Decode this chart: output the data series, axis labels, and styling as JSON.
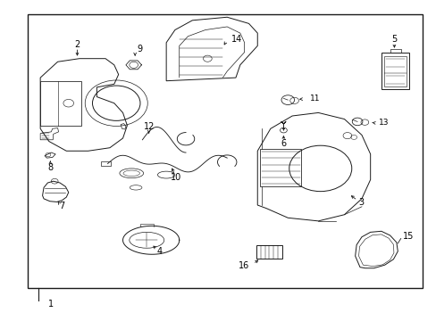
{
  "background_color": "#ffffff",
  "line_color": "#1a1a1a",
  "label_color": "#000000",
  "fig_w": 4.89,
  "fig_h": 3.6,
  "border": [
    0.06,
    0.1,
    0.91,
    0.86
  ]
}
